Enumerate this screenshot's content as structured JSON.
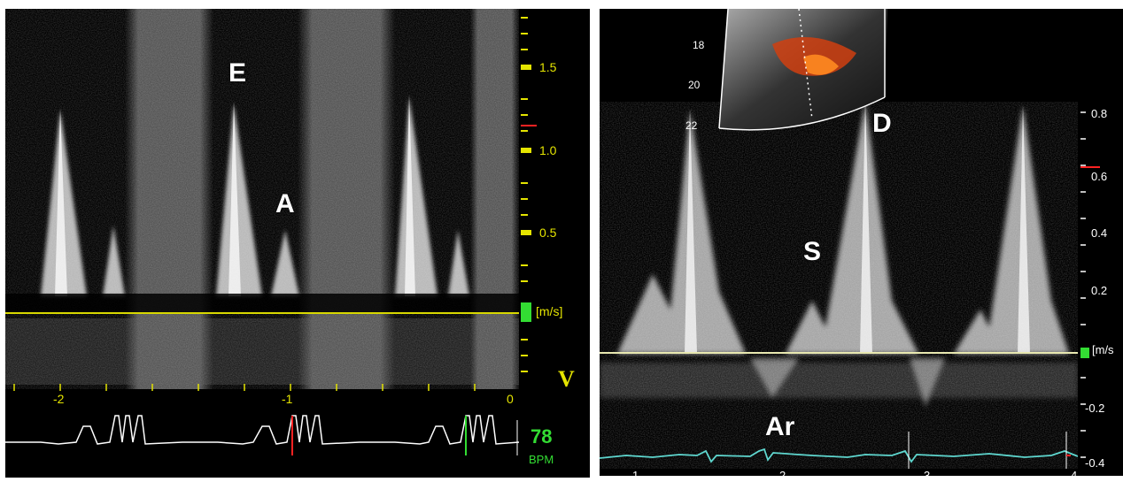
{
  "left": {
    "peak_labels": {
      "e_wave": "E",
      "a_wave": "A"
    },
    "y_ticks": [
      "1.5",
      "1.0",
      "0.5"
    ],
    "unit": "[m/s]",
    "velocity_mark": "V",
    "x_ticks": [
      "-2",
      "-1",
      "0"
    ],
    "heart_rate": "78",
    "heart_rate_unit": "BPM"
  },
  "right": {
    "peak_labels": {
      "d_wave": "D",
      "s_wave": "S",
      "ar_wave": "Ar"
    },
    "y_ticks": [
      "0.8",
      "0.6",
      "0.4",
      "0.2",
      "-0.2",
      "-0.4"
    ],
    "unit": "[m/s",
    "depth_ticks": [
      "18",
      "20",
      "22"
    ],
    "ecg_numbers": [
      "1",
      "2",
      "3",
      "4"
    ]
  },
  "colors": {
    "axis_yellow": "#e4e400",
    "baseline_yellow": "#d8d800",
    "ecg_white": "#ffffff",
    "ecg_cyan": "#5fd8d0",
    "bpm_green": "#33dd33",
    "marker_red": "#ff2222"
  }
}
